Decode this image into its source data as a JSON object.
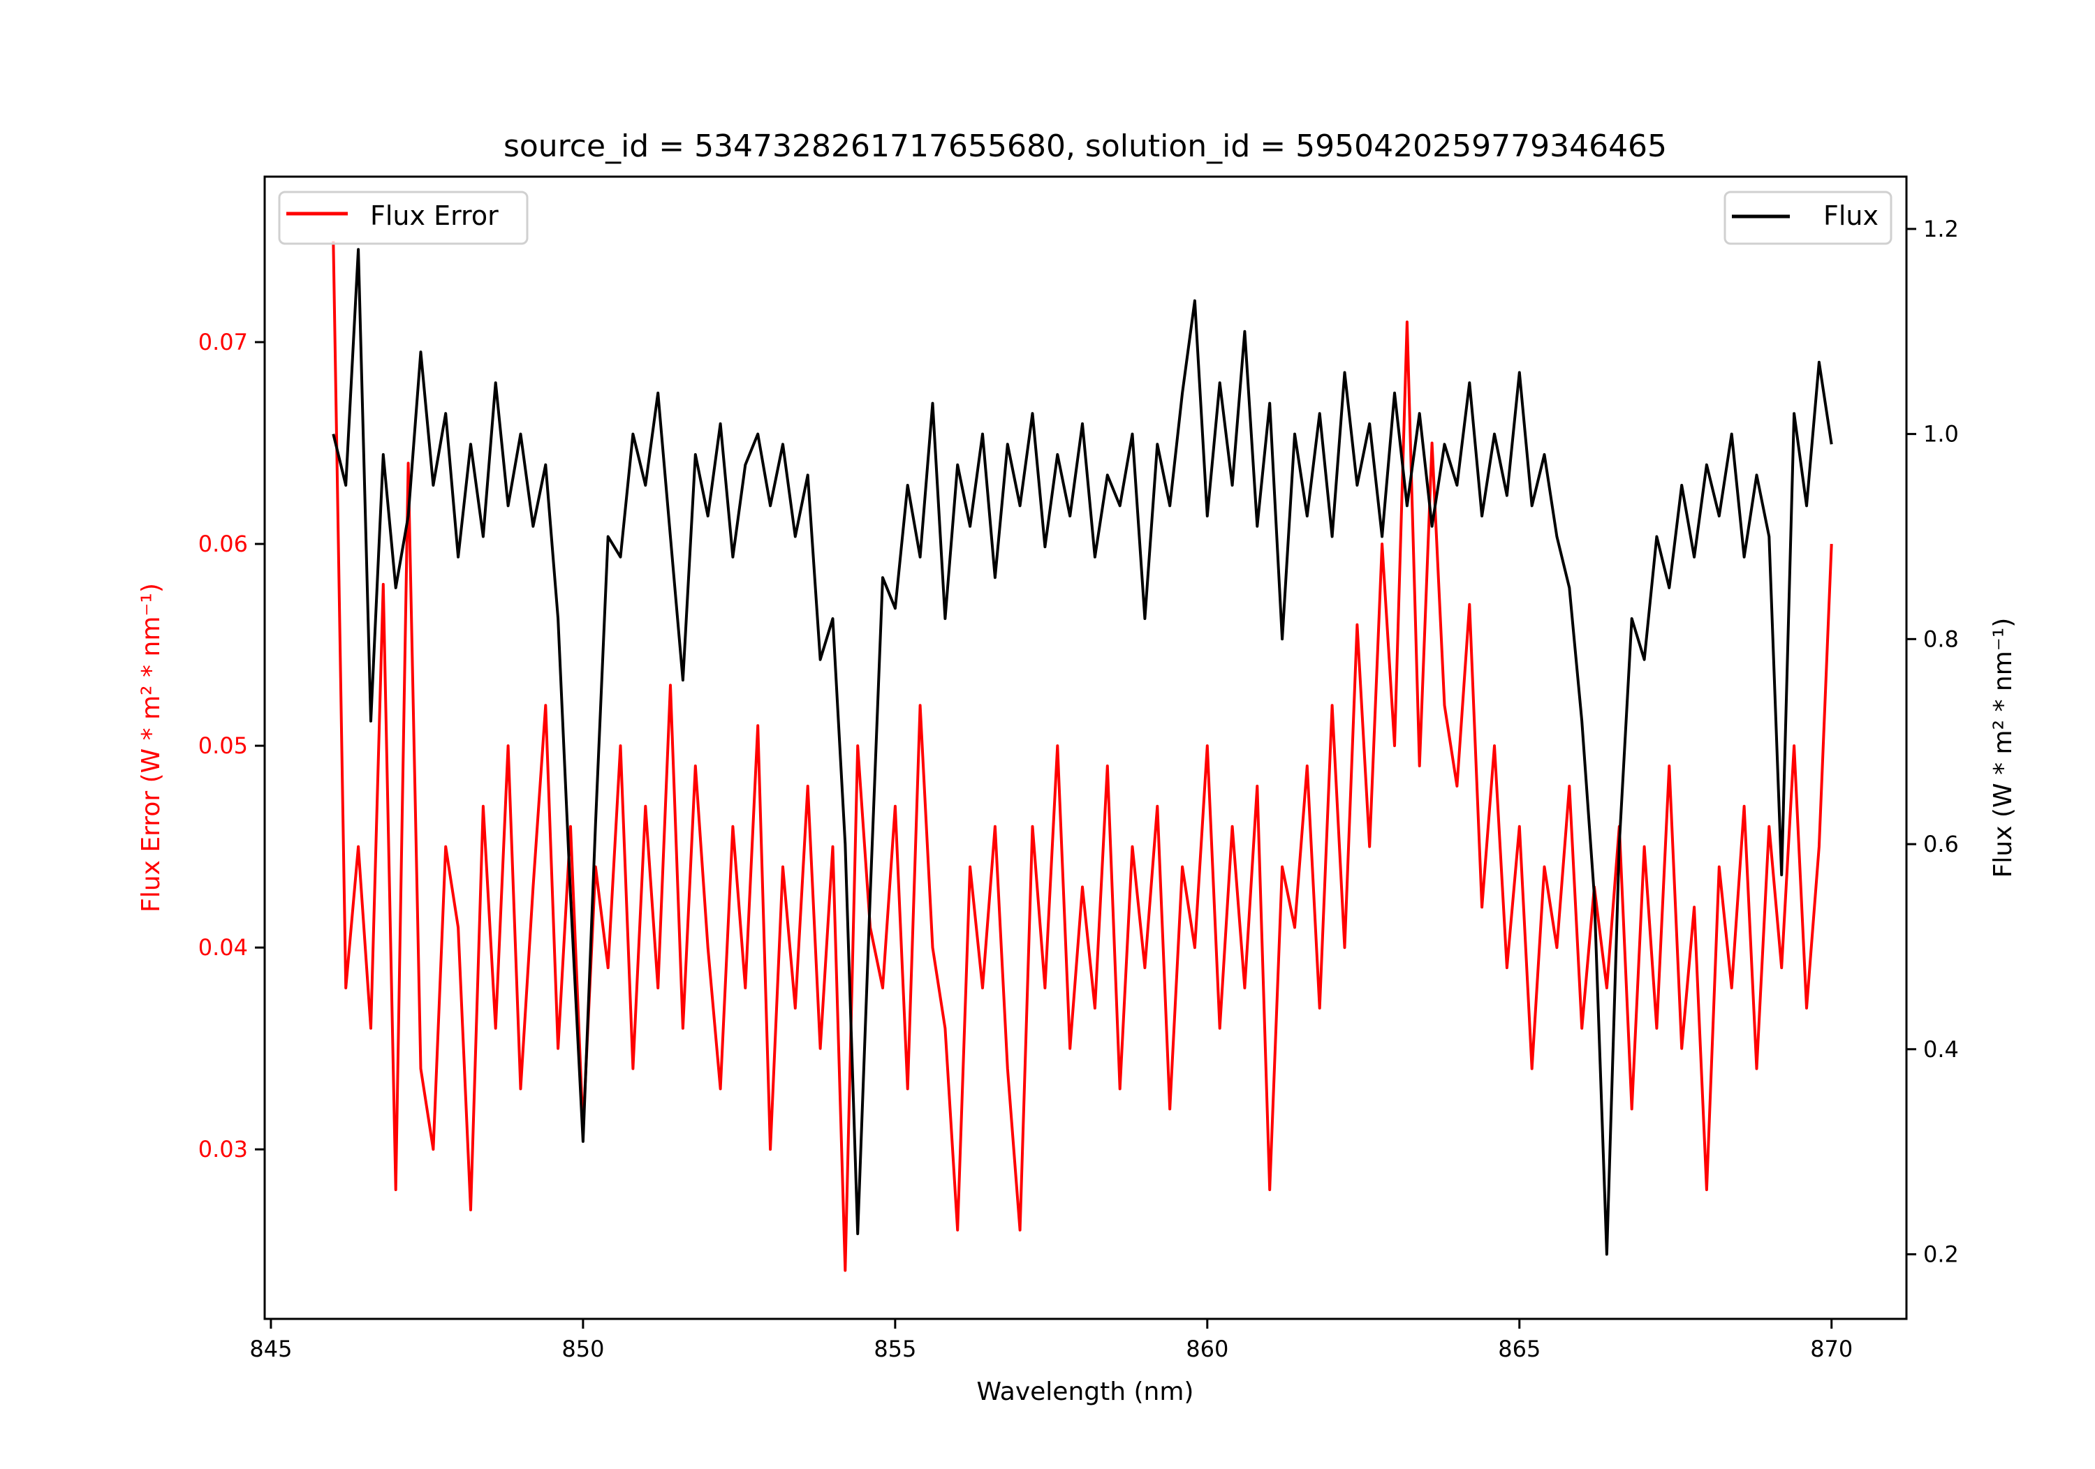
{
  "chart_data": {
    "type": "line",
    "title": "source_id = 5347328261717655680, solution_id = 5950420259779346465",
    "xlabel": "Wavelength (nm)",
    "ylabel_left": "Flux Error (W * m² * nm⁻¹)",
    "ylabel_right": "Flux (W * m² * nm⁻¹)",
    "xlim": [
      844.9,
      871.2
    ],
    "ylim_left": [
      0.0216,
      0.0782
    ],
    "ylim_right": [
      0.137,
      1.251
    ],
    "x_ticks": [
      "845",
      "850",
      "855",
      "860",
      "865",
      "870"
    ],
    "y_ticks_left": [
      "0.03",
      "0.04",
      "0.05",
      "0.06",
      "0.07"
    ],
    "y_ticks_right": [
      "0.2",
      "0.4",
      "0.6",
      "0.8",
      "1.0",
      "1.2"
    ],
    "grid": false,
    "x_start": 846.0,
    "x_step": 0.2,
    "series": [
      {
        "name": "Flux Error",
        "axis": "left",
        "color": "#ff0000",
        "legend": "top-left",
        "values": [
          0.075,
          0.038,
          0.045,
          0.036,
          0.058,
          0.028,
          0.064,
          0.034,
          0.03,
          0.045,
          0.041,
          0.027,
          0.047,
          0.036,
          0.05,
          0.033,
          0.043,
          0.052,
          0.035,
          0.046,
          0.031,
          0.044,
          0.039,
          0.05,
          0.034,
          0.047,
          0.038,
          0.053,
          0.036,
          0.049,
          0.04,
          0.033,
          0.046,
          0.038,
          0.051,
          0.03,
          0.044,
          0.037,
          0.048,
          0.035,
          0.045,
          0.024,
          0.05,
          0.041,
          0.038,
          0.047,
          0.033,
          0.052,
          0.04,
          0.036,
          0.026,
          0.044,
          0.038,
          0.046,
          0.034,
          0.026,
          0.046,
          0.038,
          0.05,
          0.035,
          0.043,
          0.037,
          0.049,
          0.033,
          0.045,
          0.039,
          0.047,
          0.032,
          0.044,
          0.04,
          0.05,
          0.036,
          0.046,
          0.038,
          0.048,
          0.028,
          0.044,
          0.041,
          0.049,
          0.037,
          0.052,
          0.04,
          0.056,
          0.045,
          0.06,
          0.05,
          0.071,
          0.049,
          0.065,
          0.052,
          0.048,
          0.057,
          0.042,
          0.05,
          0.039,
          0.046,
          0.034,
          0.044,
          0.04,
          0.048,
          0.036,
          0.043,
          0.038,
          0.046,
          0.032,
          0.045,
          0.036,
          0.049,
          0.035,
          0.042,
          0.028,
          0.044,
          0.038,
          0.047,
          0.034,
          0.046,
          0.039,
          0.05,
          0.037,
          0.045,
          0.06
        ]
      },
      {
        "name": "Flux",
        "axis": "right",
        "color": "#000000",
        "legend": "top-right",
        "values": [
          1.0,
          0.95,
          1.18,
          0.72,
          0.98,
          0.85,
          0.92,
          1.08,
          0.95,
          1.02,
          0.88,
          0.99,
          0.9,
          1.05,
          0.93,
          1.0,
          0.91,
          0.97,
          0.82,
          0.55,
          0.31,
          0.62,
          0.9,
          0.88,
          1.0,
          0.95,
          1.04,
          0.9,
          0.76,
          0.98,
          0.92,
          1.01,
          0.88,
          0.97,
          1.0,
          0.93,
          0.99,
          0.9,
          0.96,
          0.78,
          0.82,
          0.6,
          0.22,
          0.55,
          0.86,
          0.83,
          0.95,
          0.88,
          1.03,
          0.82,
          0.97,
          0.91,
          1.0,
          0.86,
          0.99,
          0.93,
          1.02,
          0.89,
          0.98,
          0.92,
          1.01,
          0.88,
          0.96,
          0.93,
          1.0,
          0.82,
          0.99,
          0.93,
          1.04,
          1.13,
          0.92,
          1.05,
          0.95,
          1.1,
          0.91,
          1.03,
          0.8,
          1.0,
          0.92,
          1.02,
          0.9,
          1.06,
          0.95,
          1.01,
          0.9,
          1.04,
          0.93,
          1.02,
          0.91,
          0.99,
          0.95,
          1.05,
          0.92,
          1.0,
          0.94,
          1.06,
          0.93,
          0.98,
          0.9,
          0.85,
          0.72,
          0.55,
          0.2,
          0.6,
          0.82,
          0.78,
          0.9,
          0.85,
          0.95,
          0.88,
          0.97,
          0.92,
          1.0,
          0.88,
          0.96,
          0.9,
          0.57,
          1.02,
          0.93,
          1.07,
          0.99
        ]
      }
    ]
  }
}
